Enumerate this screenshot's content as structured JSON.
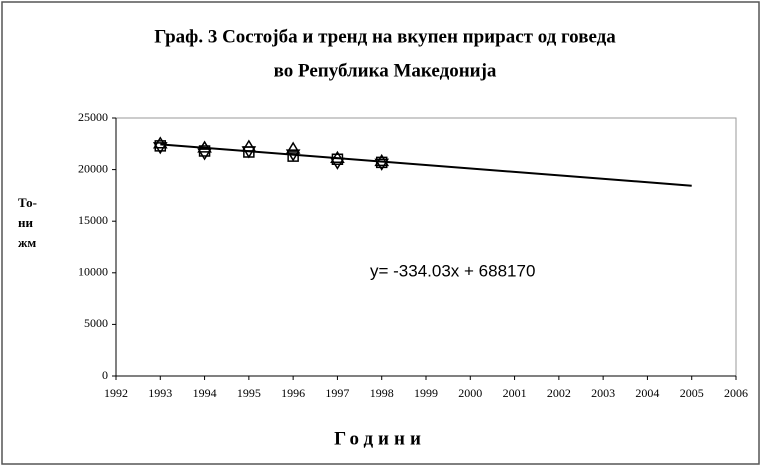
{
  "chart_data": {
    "type": "scatter",
    "title": [
      "Граф. 3 Состојба и тренд на вкупен прираст од говеда",
      "во Република Македонија"
    ],
    "xlabel": "Години",
    "ylabel": [
      "То-",
      "ни",
      "жм"
    ],
    "annotation": "y= -334.03x + 688170",
    "x": [
      1993,
      1994,
      1995,
      1996,
      1997,
      1998
    ],
    "series": [
      {
        "marker": "square",
        "color": "#000000",
        "values": [
          22300,
          21800,
          21700,
          21300,
          21000,
          20700
        ]
      },
      {
        "marker": "triangle-up",
        "color": "#000000",
        "values": [
          22500,
          22100,
          22200,
          22000,
          21100,
          20800
        ]
      },
      {
        "marker": "triangle-down",
        "color": "#000000",
        "values": [
          22200,
          21600,
          21800,
          21500,
          20700,
          20600
        ]
      }
    ],
    "trend": {
      "x": [
        1993,
        2005
      ],
      "values": [
        22448,
        18440
      ],
      "color": "#000000"
    },
    "xlim": [
      1992,
      2006
    ],
    "xticks": [
      1992,
      1993,
      1994,
      1995,
      1996,
      1997,
      1998,
      1999,
      2000,
      2001,
      2002,
      2003,
      2004,
      2005,
      2006
    ],
    "ylim": [
      0,
      25000
    ],
    "yticks": [
      0,
      5000,
      10000,
      15000,
      20000,
      25000
    ],
    "grid": false
  }
}
